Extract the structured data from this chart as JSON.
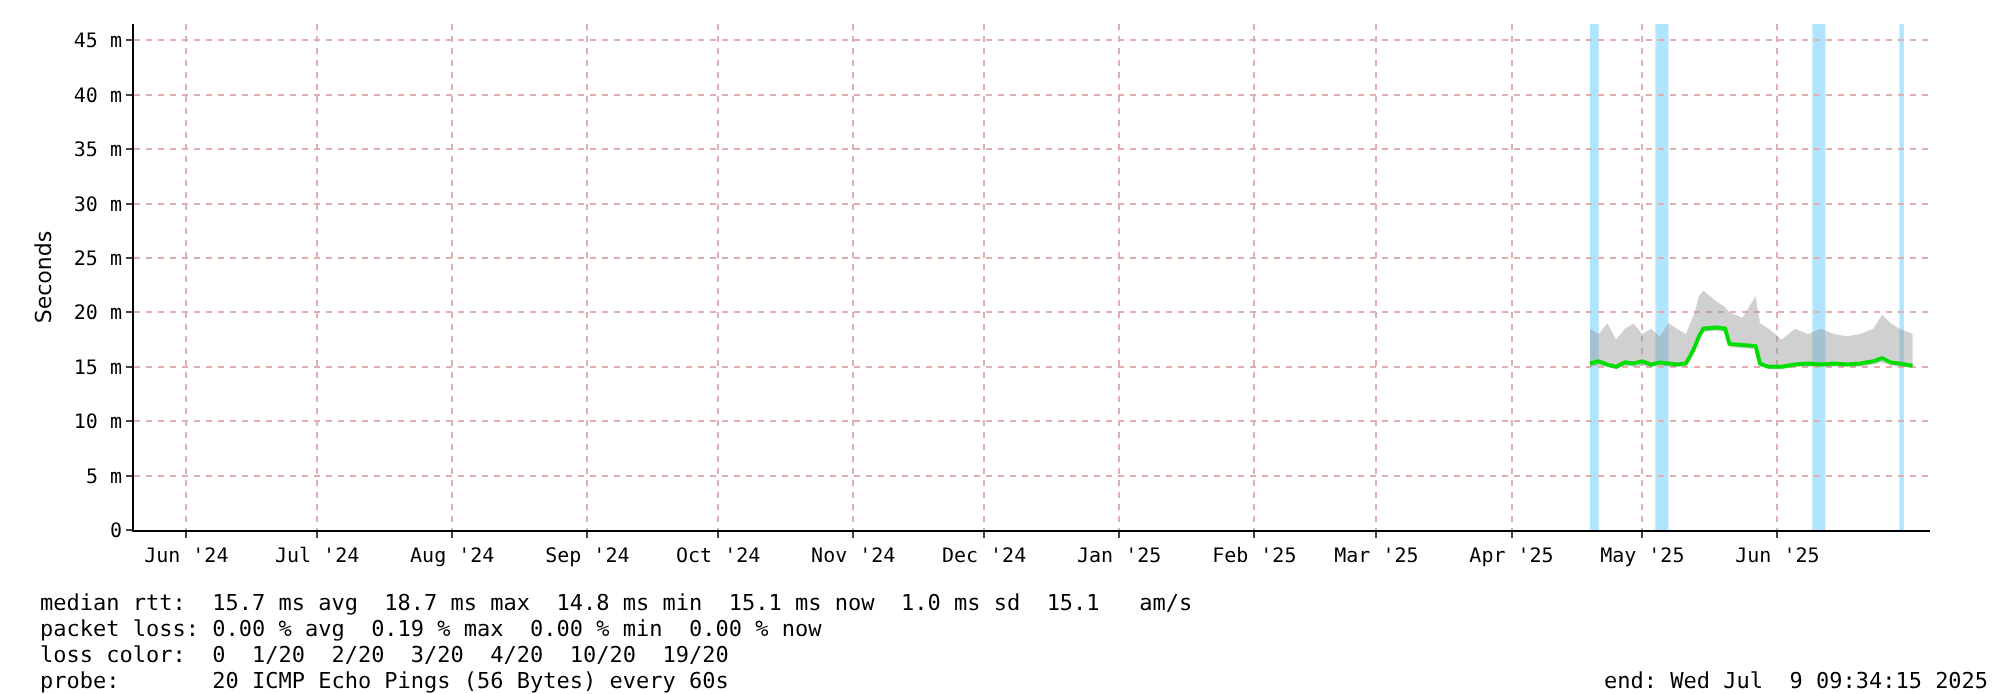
{
  "chart_data": {
    "type": "line",
    "ylabel": "Seconds",
    "x": [
      "2025-04-26",
      "2025-04-28",
      "2025-04-30",
      "2025-05-02",
      "2025-05-04",
      "2025-05-06",
      "2025-05-08",
      "2025-05-10",
      "2025-05-12",
      "2025-05-14",
      "2025-05-16",
      "2025-05-18",
      "2025-05-19",
      "2025-05-20",
      "2025-05-21",
      "2025-05-22",
      "2025-05-25",
      "2025-05-27",
      "2025-05-28",
      "2025-05-31",
      "2025-06-03",
      "2025-06-04",
      "2025-06-06",
      "2025-06-09",
      "2025-06-12",
      "2025-06-15",
      "2025-06-18",
      "2025-06-21",
      "2025-06-24",
      "2025-06-27",
      "2025-06-30",
      "2025-07-02",
      "2025-07-04",
      "2025-07-06",
      "2025-07-09"
    ],
    "series": [
      {
        "color": "#00dd00",
        "values": [
          15.3,
          15.5,
          15.2,
          15.0,
          15.4,
          15.3,
          15.5,
          15.2,
          15.4,
          15.3,
          15.2,
          15.3,
          16.0,
          16.8,
          17.8,
          18.5,
          18.6,
          18.5,
          17.1,
          17.0,
          16.9,
          15.3,
          15.0,
          15.0,
          15.2,
          15.3,
          15.2,
          15.3,
          15.2,
          15.3,
          15.5,
          15.8,
          15.4,
          15.3,
          15.1
        ],
        "lower": [
          15.0,
          15.1,
          15.0,
          14.8,
          15.1,
          15.0,
          15.1,
          15.0,
          15.1,
          15.0,
          15.0,
          15.0,
          15.6,
          16.4,
          17.4,
          18.2,
          18.3,
          18.2,
          16.8,
          16.7,
          16.6,
          15.0,
          14.8,
          14.8,
          15.0,
          15.0,
          15.0,
          15.0,
          15.0,
          15.0,
          15.2,
          15.4,
          15.1,
          15.0,
          14.9
        ],
        "upper": [
          18.5,
          18.0,
          19.0,
          17.5,
          18.5,
          19.0,
          18.0,
          18.5,
          17.8,
          19.0,
          18.5,
          18.0,
          19.0,
          20.0,
          21.5,
          22.0,
          21.0,
          20.5,
          20.0,
          19.5,
          21.5,
          19.0,
          18.5,
          17.5,
          18.5,
          18.0,
          18.5,
          18.0,
          17.8,
          18.0,
          18.5,
          19.8,
          19.0,
          18.5,
          18.0
        ]
      }
    ],
    "xlim": [
      "2024-05-27",
      "2025-07-13"
    ],
    "xticks": [
      {
        "value": "2024-06-08",
        "label": "Jun '24"
      },
      {
        "value": "2024-07-08",
        "label": "Jul '24"
      },
      {
        "value": "2024-08-08",
        "label": "Aug '24"
      },
      {
        "value": "2024-09-08",
        "label": "Sep '24"
      },
      {
        "value": "2024-10-08",
        "label": "Oct '24"
      },
      {
        "value": "2024-11-08",
        "label": "Nov '24"
      },
      {
        "value": "2024-12-08",
        "label": "Dec '24"
      },
      {
        "value": "2025-01-08",
        "label": "Jan '25"
      },
      {
        "value": "2025-02-08",
        "label": "Feb '25"
      },
      {
        "value": "2025-03-08",
        "label": "Mar '25"
      },
      {
        "value": "2025-04-08",
        "label": "Apr '25"
      },
      {
        "value": "2025-05-08",
        "label": "May '25"
      },
      {
        "value": "2025-06-08",
        "label": "Jun '25"
      }
    ],
    "ylim": [
      0,
      46.5
    ],
    "yticks": [
      0,
      {
        "value": 5,
        "label": "5 m"
      },
      {
        "value": 10,
        "label": "10 m"
      },
      {
        "value": 15,
        "label": "15 m"
      },
      {
        "value": 20,
        "label": "20 m"
      },
      {
        "value": 25,
        "label": "25 m"
      },
      {
        "value": 30,
        "label": "30 m"
      },
      {
        "value": 35,
        "label": "35 m"
      },
      {
        "value": 40,
        "label": "40 m"
      },
      {
        "value": 45,
        "label": "45 m"
      }
    ],
    "bands": [
      {
        "axis": "x",
        "from": "2025-04-26",
        "to": "2025-04-28",
        "color": "#b0e4ff"
      },
      {
        "axis": "x",
        "from": "2025-05-11",
        "to": "2025-05-14",
        "color": "#b0e4ff"
      },
      {
        "axis": "x",
        "from": "2025-06-16",
        "to": "2025-06-19",
        "color": "#b0e4ff"
      },
      {
        "axis": "x",
        "from": "2025-07-06",
        "to": "2025-07-07",
        "color": "#b0e4ff"
      }
    ],
    "grid": true,
    "marker": "none",
    "line_style": "solid",
    "annotations": [
      "median rtt:  15.7 ms avg  18.7 ms max  14.8 ms min  15.1 ms now  1.0 ms sd  15.1   am/s",
      "packet loss: 0.00 % avg  0.19 % max  0.00 % min  0.00 % now",
      "loss color:  0  1/20  2/20  3/20  4/20  10/20  19/20",
      "probe:       20 ICMP Echo Pings (56 Bytes) every 60s",
      "end: Wed Jul  9 09:34:15 2025"
    ]
  }
}
